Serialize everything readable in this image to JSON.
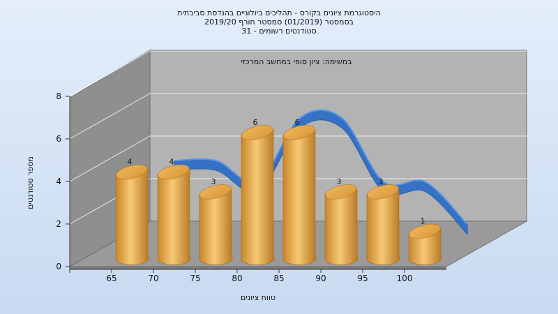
{
  "chart_data": {
    "type": "bar",
    "title_lines": [
      "היסטוגרמת ציונים בקורס - תהליכים ביולוגיים בהנדסת סביבתית",
      "בסמסטר  (01/2019)  סמסטר חורף  2019/20",
      "סטודנטים רשומים - 31"
    ],
    "subtitle": "במשימה: ציון סופי במחשב המרכזי",
    "xlabel": "טווח ציונים",
    "ylabel": "מספר סטודנטים",
    "categories": [
      "65",
      "70",
      "75",
      "80",
      "85",
      "90",
      "95",
      "100"
    ],
    "values": [
      4,
      4,
      3,
      6,
      6,
      3,
      3,
      1
    ],
    "yticks": [
      0,
      2,
      4,
      6,
      8
    ],
    "ylim": [
      0,
      8
    ],
    "colors": {
      "bar": "#e2a243",
      "curve": "#2f6fc8",
      "back_wall": "#b3b3b3",
      "side_wall": "#8f8f8f",
      "floor": "#9a9a9a"
    }
  }
}
